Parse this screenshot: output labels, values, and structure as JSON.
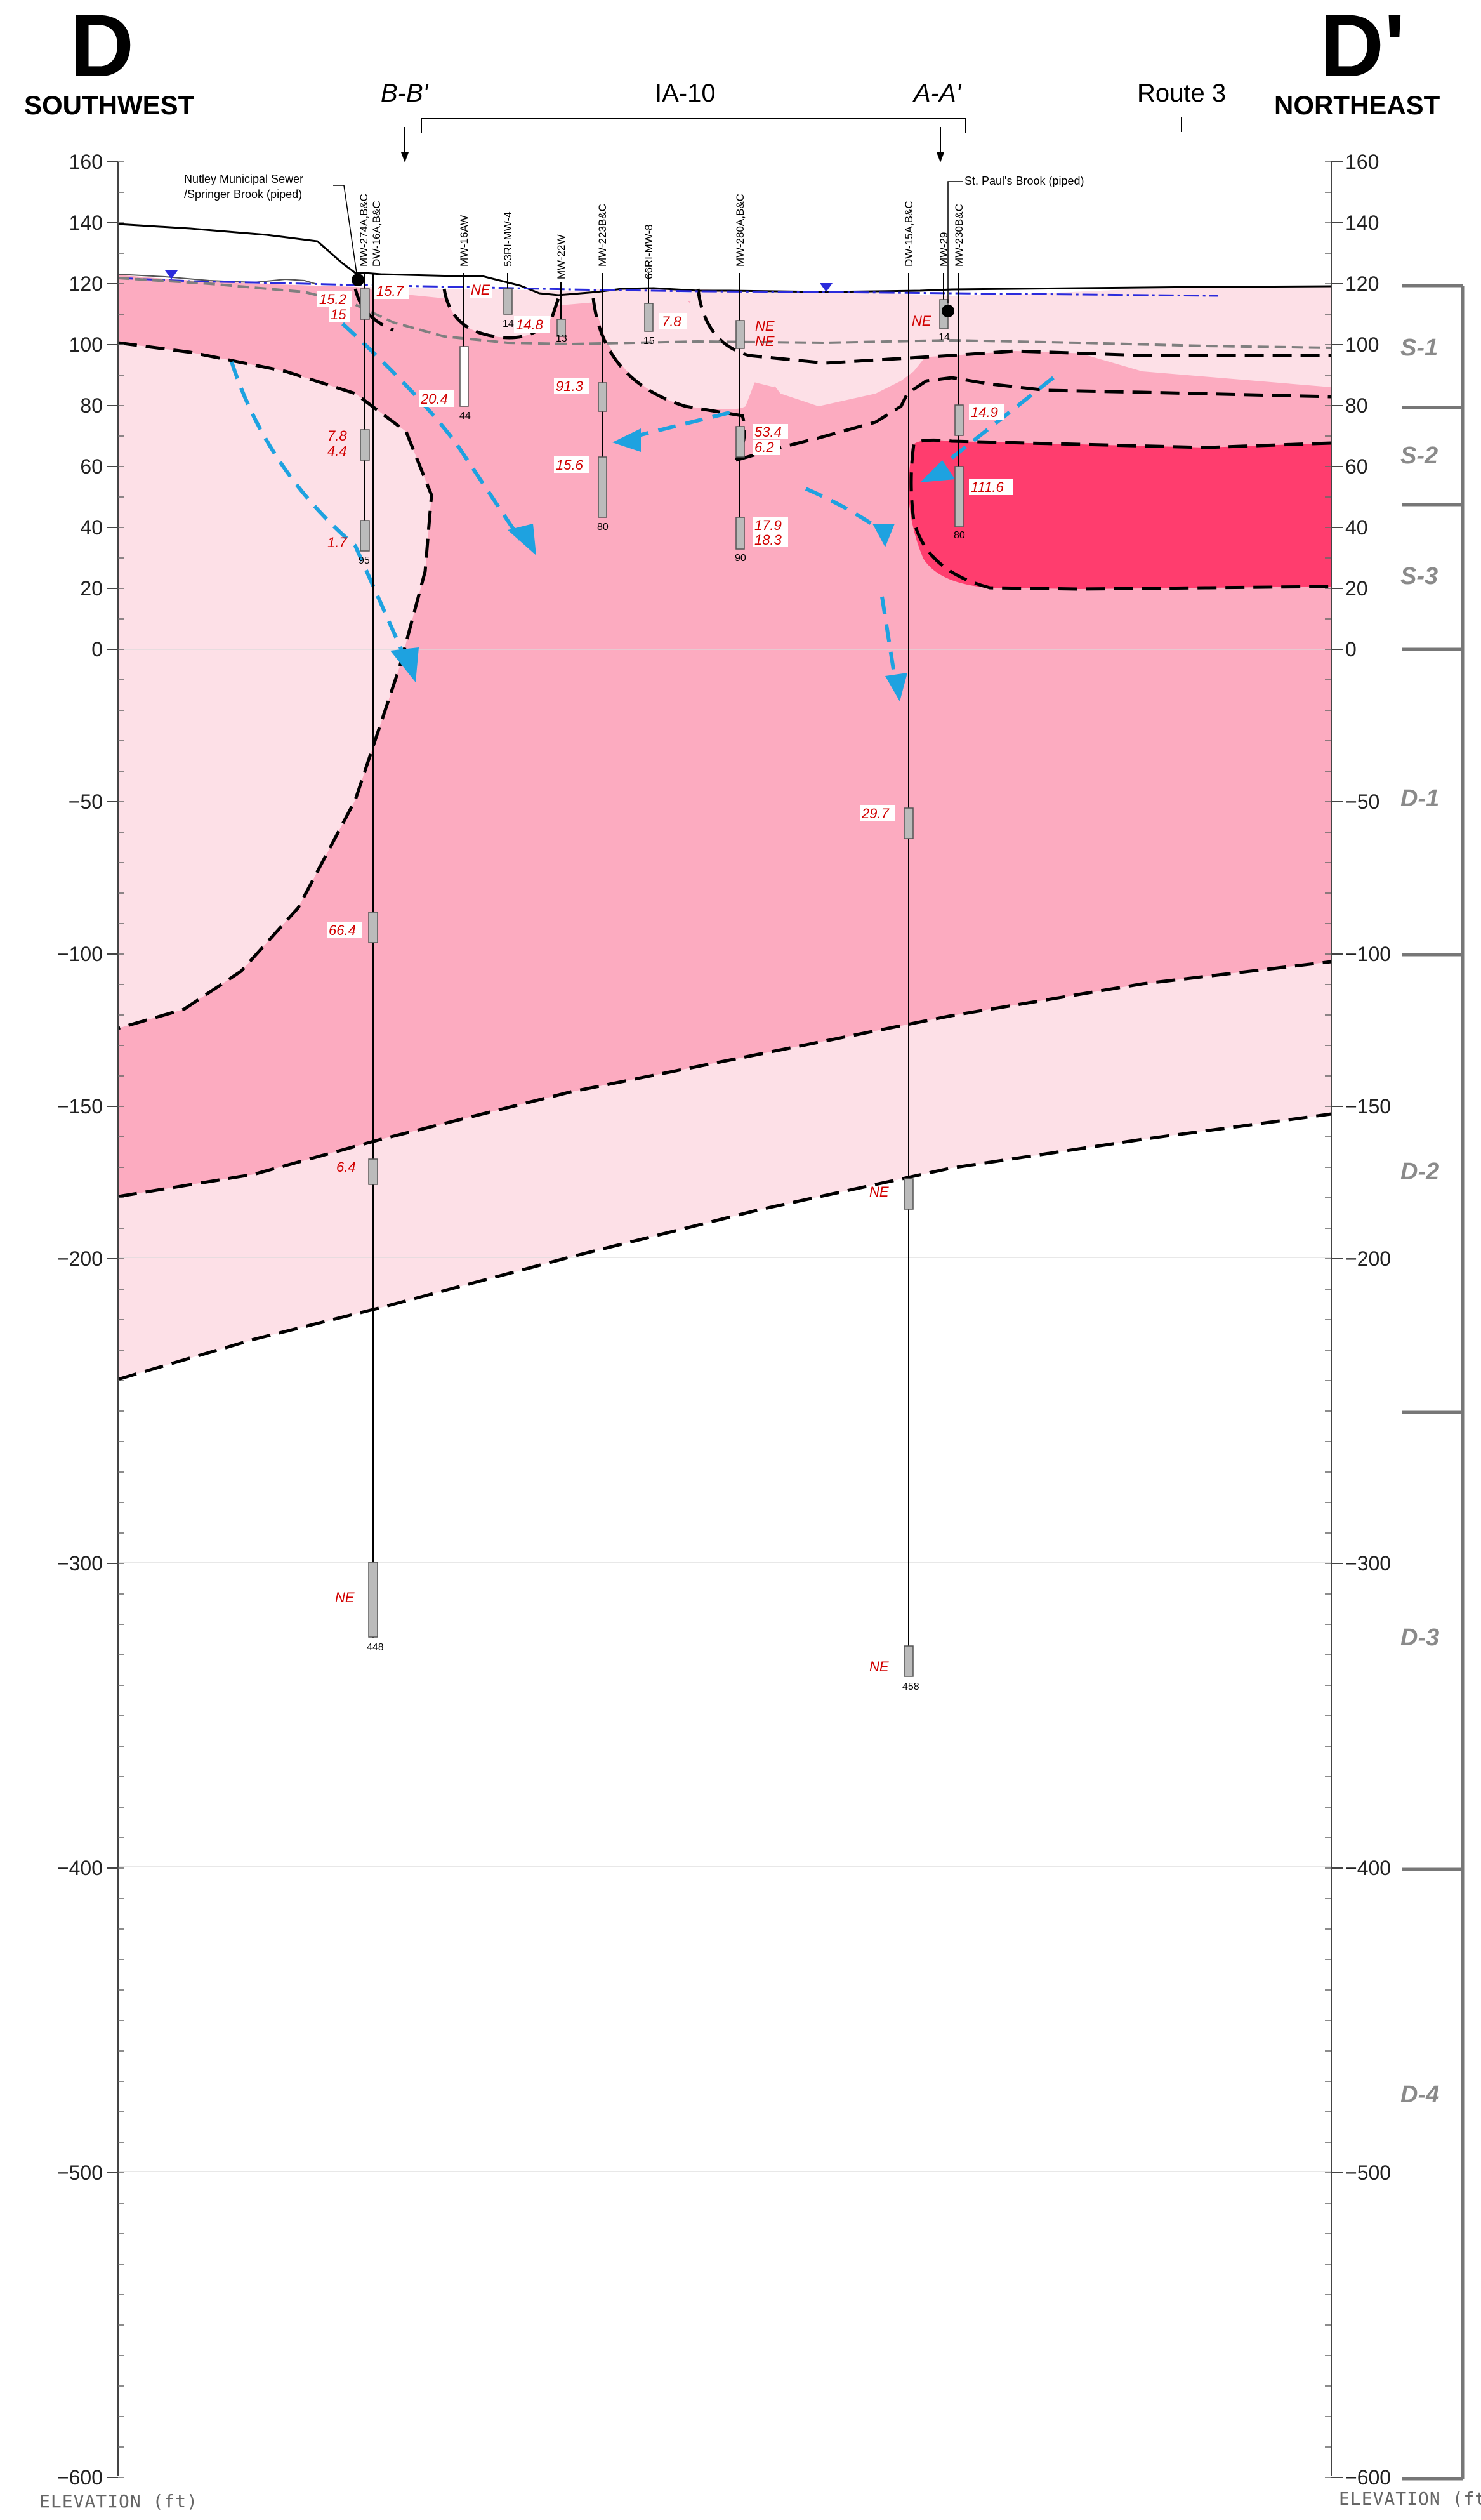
{
  "header": {
    "left_letter": "D",
    "right_letter": "D'",
    "left_direction": "SOUTHWEST",
    "right_direction": "NORTHEAST",
    "section_bb": "B-B'",
    "section_aa": "A-A'",
    "area_label": "IA-10",
    "route_label": "Route 3"
  },
  "axis": {
    "title_left": "ELEVATION (ft)",
    "title_right": "ELEVATION (ft)",
    "left_ticks": [
      "160",
      "140",
      "120",
      "100",
      "80",
      "60",
      "40",
      "20",
      "0",
      "−50",
      "−100",
      "−150",
      "−200",
      "−300",
      "−400",
      "−500",
      "−600"
    ],
    "right_ticks": [
      "160",
      "140",
      "120",
      "100",
      "80",
      "60",
      "40",
      "20",
      "0",
      "−50",
      "−100",
      "−150",
      "−200",
      "−300",
      "−400",
      "−500",
      "−600"
    ]
  },
  "notes": {
    "sewer_line1": "Nutley Municipal Sewer",
    "sewer_line2": "/Springer  Brook (piped)",
    "brook": "St. Paul's Brook (piped)"
  },
  "units": [
    "S-1",
    "S-2",
    "S-3",
    "D-1",
    "D-2",
    "D-3",
    "D-4"
  ],
  "wells": [
    "MW-274A,B&C",
    "DW-16A,B&C",
    "MW-16AW",
    "53RI-MW-4",
    "MW-22W",
    "MW-223B&C",
    "66RI-MW-8",
    "MW-280A,B&C",
    "DW-15A,B&C",
    "MW-29",
    "MW-230B&C"
  ],
  "depths": [
    "95",
    "448",
    "44",
    "14",
    "13",
    "80",
    "15",
    "90",
    "458",
    "14",
    "80"
  ],
  "concentrations": [
    "15.2",
    "15",
    "15.7",
    "7.8",
    "4.4",
    "1.7",
    "66.4",
    "6.4",
    "NE",
    "NE",
    "20.4",
    "14.8",
    "91.3",
    "15.6",
    "7.8",
    "NE",
    "NE",
    "53.4",
    "6.2",
    "17.9",
    "18.3",
    "29.7",
    "NE",
    "NE",
    "NE",
    "14.9",
    "111.6"
  ],
  "colors": {
    "plume_light": "#fde0e7",
    "plume_mid": "#fcabc0",
    "plume_high": "#ff3d6e",
    "flow_arrow": "#1ea2e0",
    "water_table": "#2b2bdc",
    "concentration_text": "#d10000",
    "unit_label": "#8a8a8a"
  }
}
